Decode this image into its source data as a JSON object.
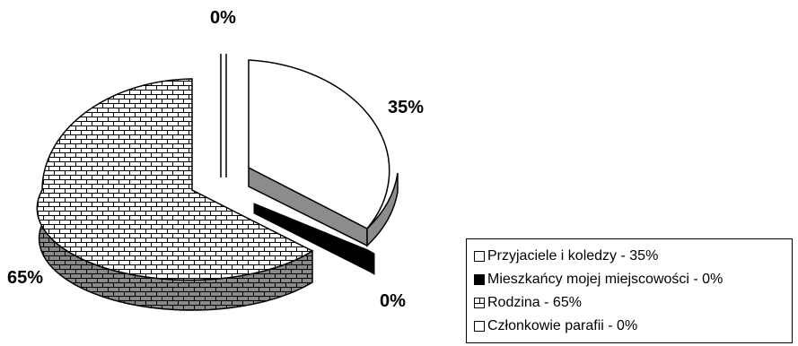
{
  "chart_data": {
    "type": "pie",
    "categories": [
      "Przyjaciele i koledzy",
      "Mieszkańcy mojej miejscowości",
      "Rodzina",
      "Członkowie parafii"
    ],
    "values": [
      35,
      0,
      65,
      0
    ],
    "data_labels": [
      "35%",
      "0%",
      "65%",
      "0%"
    ],
    "legend_entries": [
      "Przyjaciele i koledzy - 35%",
      "Mieszkańcy mojej miejscowości - 0%",
      "Rodzina - 65%",
      "Członkowie parafii - 0%"
    ],
    "legend_position": "bottom-right",
    "style": "3d-exploded"
  },
  "colors": {
    "przyjaciele": "#ffffff",
    "mieszkancy": "#000000",
    "rodzina_top": "#ffffff",
    "rodzina_side": "#8a8a8a",
    "side_gray": "#8c8c8c"
  }
}
